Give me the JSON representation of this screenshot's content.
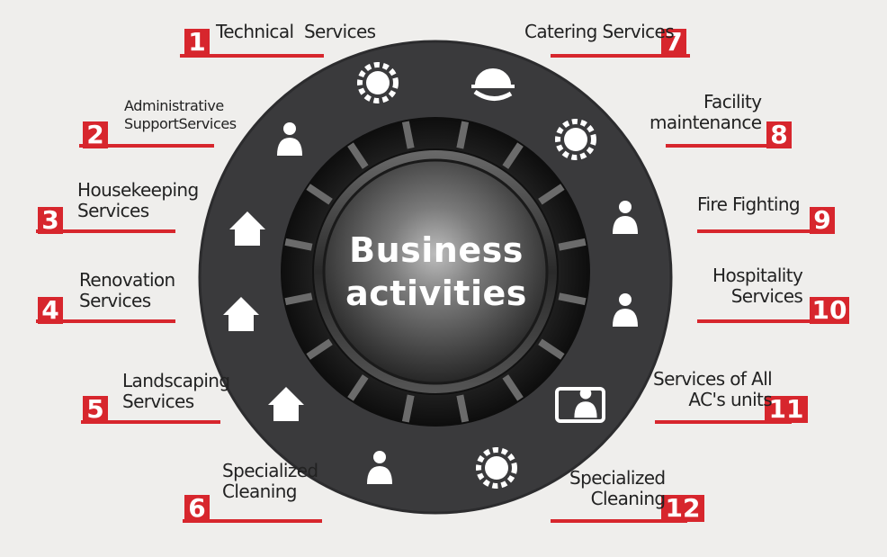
{
  "center_title": [
    "Business",
    "activities"
  ],
  "colors": {
    "accent": "#d7262d",
    "ring": "#3a3a3c",
    "background": "#efeeec"
  },
  "items": [
    {
      "number": "1",
      "label": "Technical  Services",
      "icon": "gear-wrench-icon"
    },
    {
      "number": "2",
      "label": "Administrative\nSupportServices",
      "icon": "admin-person-icon"
    },
    {
      "number": "3",
      "label": "Housekeeping\nServices",
      "icon": "house-tools-icon"
    },
    {
      "number": "4",
      "label": "Renovation\nServices",
      "icon": "renovation-house-icon"
    },
    {
      "number": "5",
      "label": "Landscaping\nServices",
      "icon": "plant-house-icon"
    },
    {
      "number": "6",
      "label": "Specialized\nCleaning",
      "icon": "cleaning-worker-icon"
    },
    {
      "number": "7",
      "label": "Catering Services",
      "icon": "serving-cloche-icon"
    },
    {
      "number": "8",
      "label": "Facility\nmaintenance",
      "icon": "maintenance-worker-gear-icon"
    },
    {
      "number": "9",
      "label": "Fire Fighting",
      "icon": "firefighter-hose-icon"
    },
    {
      "number": "10",
      "label": "Hospitality\nServices",
      "icon": "bellboy-luggage-icon"
    },
    {
      "number": "11",
      "label": "Services of All\nAC's units",
      "icon": "ac-technician-icon"
    },
    {
      "number": "12",
      "label": "Specialized\nCleaning",
      "icon": "worker-gear-icon"
    }
  ]
}
